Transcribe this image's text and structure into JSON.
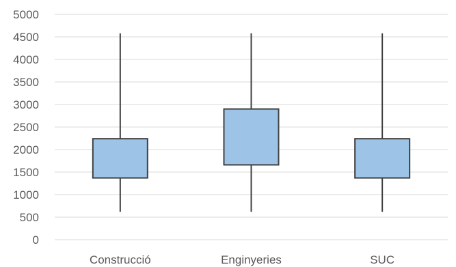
{
  "chart_data": {
    "type": "boxplot",
    "title": "",
    "xlabel": "",
    "ylabel": "",
    "ylim": [
      0,
      5000
    ],
    "ytick_step": 500,
    "grid": true,
    "categories": [
      "Construcció",
      "Enginyeries",
      "SUC"
    ],
    "series": [
      {
        "min": 620,
        "q1": 1370,
        "q3": 2240,
        "max": 4580
      },
      {
        "min": 620,
        "q1": 1660,
        "q3": 2900,
        "max": 4580
      },
      {
        "min": 620,
        "q1": 1370,
        "q3": 2240,
        "max": 4580
      }
    ],
    "colors": {
      "box": "#9dc3e6",
      "stroke": "#404040",
      "grid": "#d9d9d9",
      "text": "#595959"
    }
  }
}
